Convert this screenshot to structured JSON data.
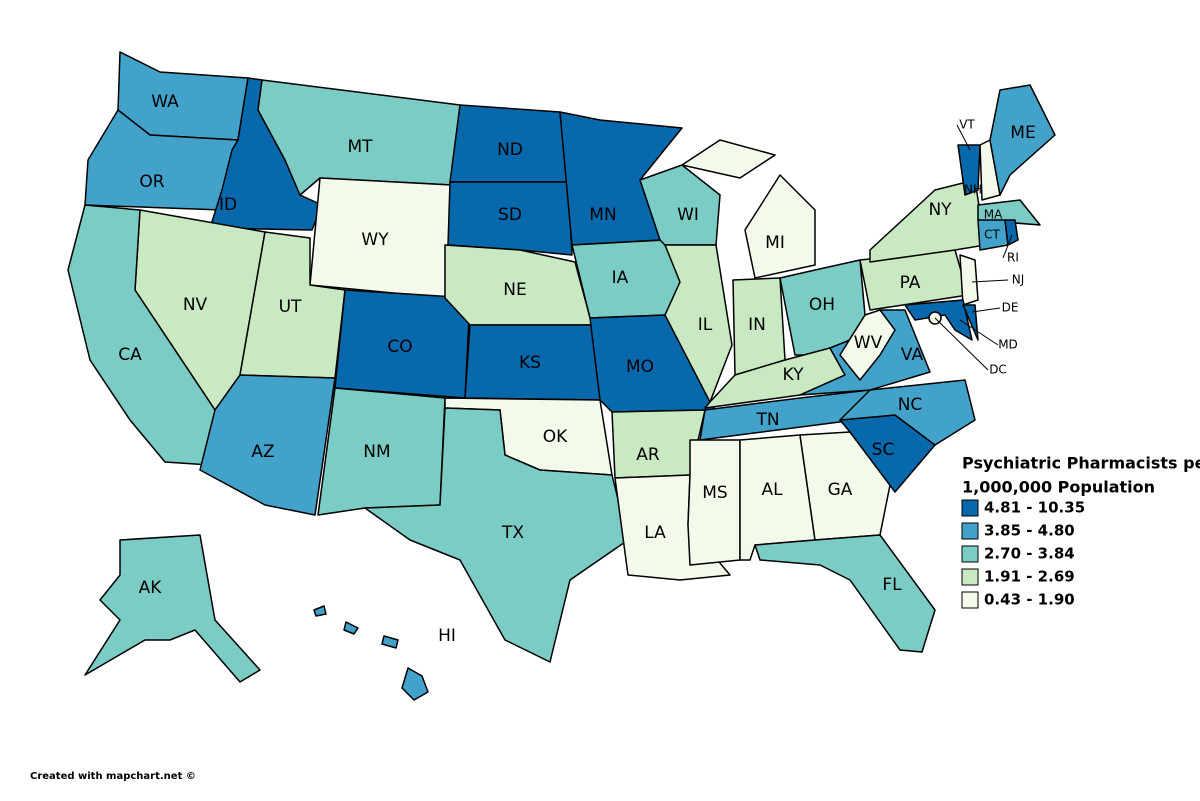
{
  "legend": {
    "title": [
      "Psychiatric Pharmacists per",
      "1,000,000 Population"
    ],
    "classes": [
      {
        "label": "4.81 - 10.35",
        "color": "#0868ac"
      },
      {
        "label": "3.85 - 4.80",
        "color": "#43a2ca"
      },
      {
        "label": "2.70 - 3.84",
        "color": "#7bccc4"
      },
      {
        "label": "1.91 - 2.69",
        "color": "#c9e9c2"
      },
      {
        "label": "0.43 - 1.90",
        "color": "#f3faeb"
      }
    ]
  },
  "states": [
    {
      "label": "WA",
      "class": 1
    },
    {
      "label": "OR",
      "class": 1
    },
    {
      "label": "ID",
      "class": 0
    },
    {
      "label": "MT",
      "class": 2
    },
    {
      "label": "WY",
      "class": 4
    },
    {
      "label": "NV",
      "class": 3
    },
    {
      "label": "CA",
      "class": 2
    },
    {
      "label": "UT",
      "class": 3
    },
    {
      "label": "AZ",
      "class": 1
    },
    {
      "label": "CO",
      "class": 0
    },
    {
      "label": "NM",
      "class": 2
    },
    {
      "label": "ND",
      "class": 0
    },
    {
      "label": "SD",
      "class": 0
    },
    {
      "label": "NE",
      "class": 3
    },
    {
      "label": "KS",
      "class": 0
    },
    {
      "label": "OK",
      "class": 4
    },
    {
      "label": "TX",
      "class": 2
    },
    {
      "label": "MN",
      "class": 0
    },
    {
      "label": "IA",
      "class": 2
    },
    {
      "label": "MO",
      "class": 0
    },
    {
      "label": "AR",
      "class": 3
    },
    {
      "label": "LA",
      "class": 4
    },
    {
      "label": "WI",
      "class": 2
    },
    {
      "label": "IL",
      "class": 3
    },
    {
      "label": "MI",
      "class": 4
    },
    {
      "label": "IN",
      "class": 3
    },
    {
      "label": "OH",
      "class": 2
    },
    {
      "label": "KY",
      "class": 3
    },
    {
      "label": "TN",
      "class": 1
    },
    {
      "label": "MS",
      "class": 4
    },
    {
      "label": "AL",
      "class": 4
    },
    {
      "label": "GA",
      "class": 4
    },
    {
      "label": "FL",
      "class": 2
    },
    {
      "label": "SC",
      "class": 0
    },
    {
      "label": "NC",
      "class": 1
    },
    {
      "label": "VA",
      "class": 1
    },
    {
      "label": "WV",
      "class": 4
    },
    {
      "label": "PA",
      "class": 3
    },
    {
      "label": "NY",
      "class": 3
    },
    {
      "label": "NJ",
      "class": 4
    },
    {
      "label": "MD",
      "class": 0
    },
    {
      "label": "DE",
      "class": 0
    },
    {
      "label": "DC",
      "class": 4
    },
    {
      "label": "VT",
      "class": 0
    },
    {
      "label": "NH",
      "class": 4
    },
    {
      "label": "ME",
      "class": 1
    },
    {
      "label": "MA",
      "class": 2
    },
    {
      "label": "CT",
      "class": 1
    },
    {
      "label": "RI",
      "class": 0
    },
    {
      "label": "AK",
      "class": 2
    },
    {
      "label": "HI",
      "class": 1
    }
  ],
  "credit": "Created with mapchart.net ©"
}
